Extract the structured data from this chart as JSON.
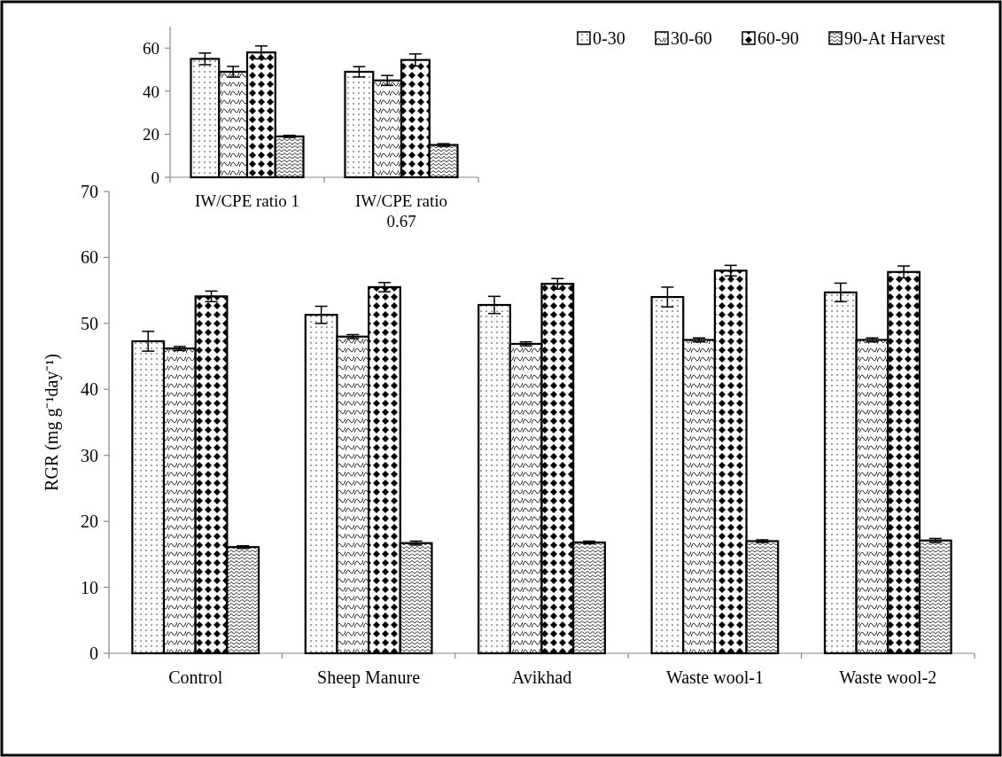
{
  "chart_data": [
    {
      "type": "bar",
      "ylabel": "RGR (mg g⁻¹day⁻¹)",
      "categories": [
        "Control",
        "Sheep Manure",
        "Avikhad",
        "Waste wool-1",
        "Waste wool-2"
      ],
      "ylim": [
        0,
        70
      ],
      "yticks": [
        0,
        10,
        20,
        30,
        40,
        50,
        60,
        70
      ],
      "grid": false,
      "legend": "top right",
      "series": [
        {
          "name": "0-30",
          "color": "#000000",
          "values": [
            47.3,
            51.3,
            52.8,
            54.0,
            54.7
          ],
          "errors": [
            1.5,
            1.3,
            1.3,
            1.5,
            1.4
          ]
        },
        {
          "name": "30-60",
          "color": "#000000",
          "values": [
            46.2,
            48.0,
            46.9,
            47.5,
            47.5
          ],
          "errors": [
            0.3,
            0.3,
            0.3,
            0.3,
            0.3
          ]
        },
        {
          "name": "60-90",
          "color": "#000000",
          "values": [
            54.1,
            55.5,
            56.0,
            58.0,
            57.8
          ],
          "errors": [
            0.8,
            0.7,
            0.8,
            0.8,
            0.9
          ]
        },
        {
          "name": "90-At Harvest",
          "color": "#000000",
          "values": [
            16.1,
            16.7,
            16.8,
            17.0,
            17.1
          ],
          "errors": [
            0.2,
            0.3,
            0.2,
            0.2,
            0.3
          ]
        }
      ]
    },
    {
      "type": "bar",
      "categories": [
        "IW/CPE ratio 1",
        "IW/CPE ratio 0.67"
      ],
      "ylim": [
        0,
        70
      ],
      "yticks": [
        0,
        20,
        40,
        60
      ],
      "grid": false,
      "series": [
        {
          "color": "#000000",
          "values": [
            55,
            49
          ],
          "errors": [
            2.7,
            2.4
          ]
        },
        {
          "color": "#000000",
          "values": [
            49,
            45
          ],
          "errors": [
            2.5,
            2.3
          ]
        },
        {
          "color": "#000000",
          "values": [
            58,
            54.5
          ],
          "errors": [
            3,
            2.8
          ]
        },
        {
          "color": "#000000",
          "values": [
            19,
            15
          ],
          "errors": [
            0.5,
            0.6
          ]
        }
      ]
    }
  ]
}
